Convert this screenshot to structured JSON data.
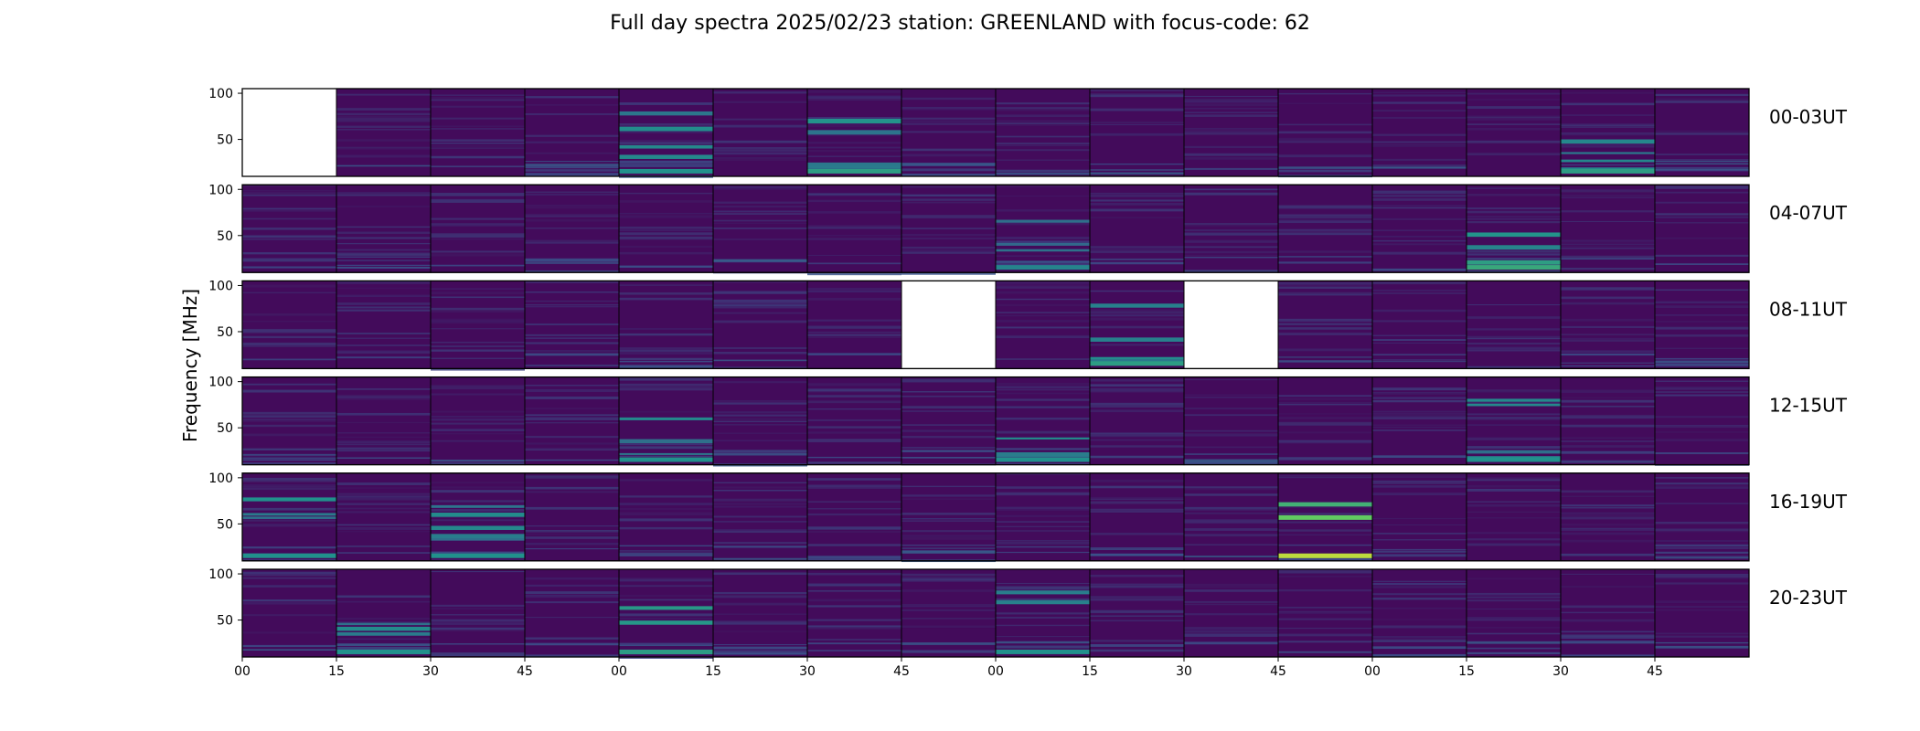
{
  "figure": {
    "title": "Full day spectra 2025/02/23 station: GREENLAND with focus-code: 62"
  },
  "chart_data": {
    "type": "heatmap",
    "title": "Full day spectra 2025/02/23 station: GREENLAND with focus-code: 62",
    "ylabel": "Frequency [MHz]",
    "xlabel": "",
    "y_ticks": [
      "100",
      "50"
    ],
    "y_tick_values": [
      100,
      50
    ],
    "ylim": [
      10,
      105
    ],
    "x_ticks": [
      "00",
      "15",
      "30",
      "45",
      "00",
      "15",
      "30",
      "45",
      "00",
      "15",
      "30",
      "45",
      "00",
      "15",
      "30",
      "45"
    ],
    "colormap": "viridis",
    "panels_per_row": 16,
    "rows": [
      {
        "label": "00-03UT",
        "missing_panels": [
          0
        ],
        "bright_panels": [
          {
            "panel": 4,
            "level": 0.5
          },
          {
            "panel": 6,
            "level": 0.55
          },
          {
            "panel": 14,
            "level": 0.55
          }
        ]
      },
      {
        "label": "04-07UT",
        "missing_panels": [],
        "bright_panels": [
          {
            "panel": 13,
            "level": 0.6
          },
          {
            "panel": 8,
            "level": 0.45
          }
        ]
      },
      {
        "label": "08-11UT",
        "missing_panels": [
          7,
          10
        ],
        "bright_panels": [
          {
            "panel": 9,
            "level": 0.55
          }
        ]
      },
      {
        "label": "12-15UT",
        "missing_panels": [],
        "bright_panels": [
          {
            "panel": 4,
            "level": 0.5
          },
          {
            "panel": 8,
            "level": 0.5
          },
          {
            "panel": 13,
            "level": 0.5
          }
        ]
      },
      {
        "label": "16-19UT",
        "missing_panels": [],
        "bright_panels": [
          {
            "panel": 11,
            "level": 0.9
          },
          {
            "panel": 0,
            "level": 0.5
          },
          {
            "panel": 2,
            "level": 0.5
          }
        ]
      },
      {
        "label": "20-23UT",
        "missing_panels": [],
        "bright_panels": [
          {
            "panel": 4,
            "level": 0.55
          },
          {
            "panel": 1,
            "level": 0.5
          },
          {
            "panel": 8,
            "level": 0.5
          }
        ]
      }
    ]
  }
}
